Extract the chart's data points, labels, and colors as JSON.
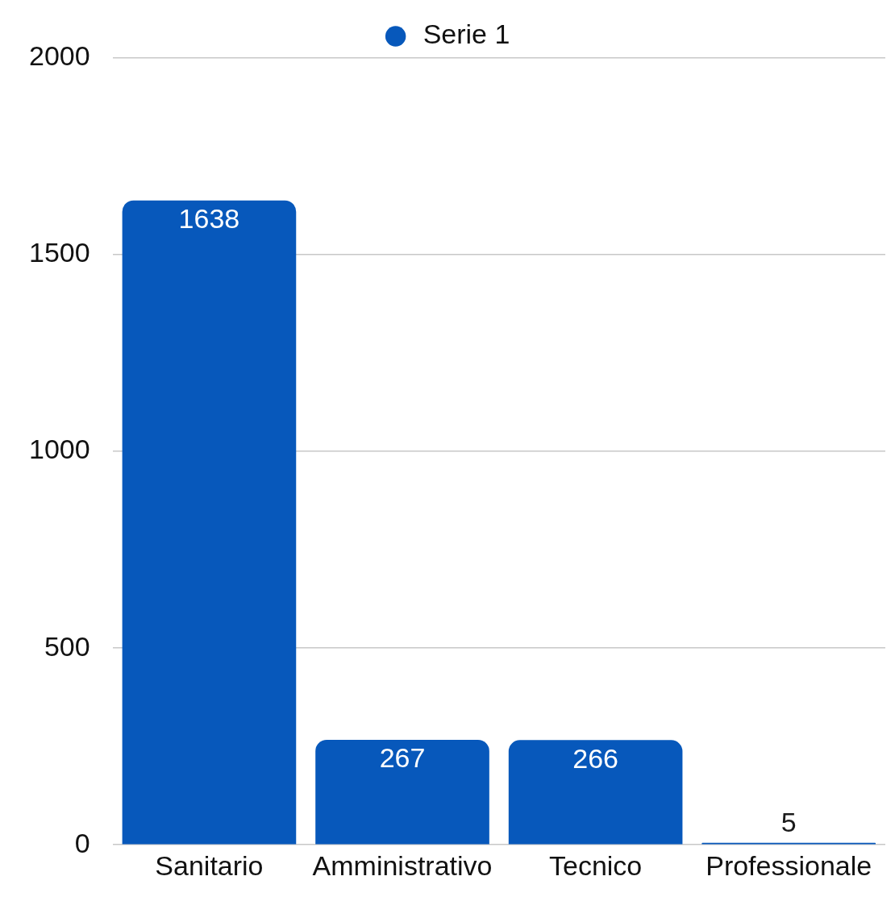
{
  "chart_data": {
    "type": "bar",
    "categories": [
      "Sanitario",
      "Amministrativo",
      "Tecnico",
      "Professionale"
    ],
    "series": [
      {
        "name": "Serie 1",
        "color": "#0758bb",
        "values": [
          1638,
          267,
          266,
          5
        ]
      }
    ],
    "ylim": [
      0,
      2000
    ],
    "yticks": [
      0,
      500,
      1000,
      1500,
      2000
    ],
    "grid": "y",
    "legend": "top",
    "data_labels": true
  }
}
